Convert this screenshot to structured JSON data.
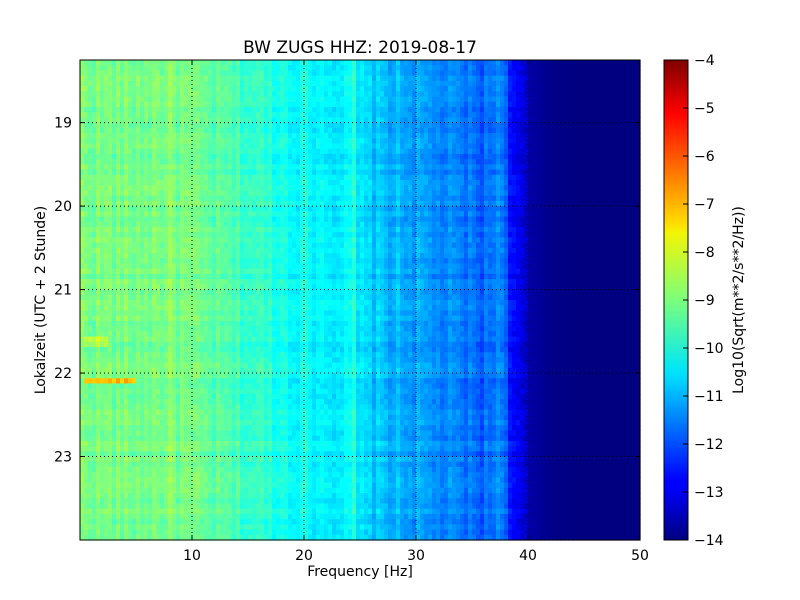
{
  "chart_data": {
    "type": "heatmap",
    "title": "BW ZUGS HHZ: 2019-08-17",
    "xlabel": "Frequency [Hz]",
    "ylabel": "Lokalzeit (UTC + 2 Stunde)",
    "xlim": [
      0,
      50
    ],
    "ylim": [
      18.25,
      24.0
    ],
    "y_inverted": true,
    "xticks": [
      10,
      20,
      30,
      40,
      50
    ],
    "yticks": [
      19,
      20,
      21,
      22,
      23
    ],
    "grid": true,
    "colormap": "jet",
    "colorbar": {
      "label": "Log10(Sqrt(m**2/s**2/Hz))",
      "range": [
        -14,
        -4
      ],
      "ticks": [
        -14,
        -13,
        -12,
        -11,
        -10,
        -9,
        -8,
        -7,
        -6,
        -5,
        -4
      ]
    },
    "frequency_profile": {
      "frequency_hz": [
        0,
        2,
        5,
        8,
        10,
        12,
        15,
        18,
        20,
        22,
        24,
        26,
        28,
        30,
        32,
        34,
        36,
        37.5,
        38.5,
        40,
        42,
        45,
        50
      ],
      "log10_amplitude": [
        -9.0,
        -9.1,
        -9.1,
        -9.0,
        -9.2,
        -9.4,
        -9.7,
        -10.0,
        -10.2,
        -10.3,
        -10.4,
        -10.8,
        -11.0,
        -11.2,
        -11.4,
        -11.6,
        -11.8,
        -11.5,
        -12.5,
        -13.6,
        -13.9,
        -14.0,
        -14.0
      ]
    },
    "annotations": [
      {
        "feature": "narrow-band line",
        "frequency_hz": 22.0,
        "log10_amplitude": -10.2
      },
      {
        "feature": "narrow-band line",
        "frequency_hz": 24.5,
        "log10_amplitude": -10.0
      },
      {
        "feature": "narrow-band line",
        "frequency_hz": 37.5,
        "log10_amplitude": -11.3
      },
      {
        "feature": "transient",
        "time": 22.08,
        "frequency_range_hz": [
          0.5,
          5
        ],
        "log10_amplitude": -7.0
      },
      {
        "feature": "transient",
        "time": 21.63,
        "frequency_range_hz": [
          0.5,
          2.5
        ],
        "log10_amplitude": -8.4
      }
    ]
  },
  "colors": {
    "background": "#ffffff",
    "axes_edge": "#000000",
    "grid": "#000000"
  }
}
